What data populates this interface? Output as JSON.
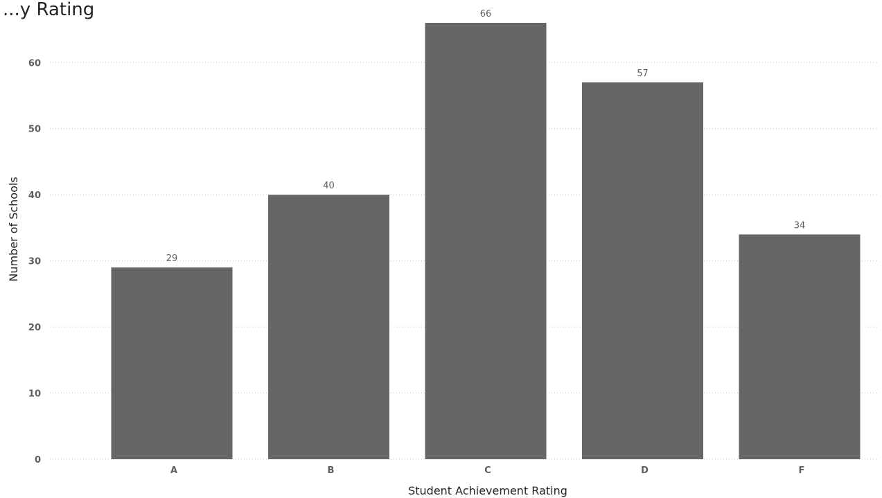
{
  "chart_data": {
    "type": "bar",
    "title": "...y Rating",
    "xlabel": "Student Achievement Rating",
    "ylabel": "Number of Schools",
    "categories": [
      "A",
      "B",
      "C",
      "D",
      "F"
    ],
    "values": [
      29,
      40,
      66,
      57,
      34
    ],
    "ylim": [
      0,
      66
    ],
    "yticks": [
      0,
      10,
      20,
      30,
      40,
      50,
      60
    ],
    "grid": true,
    "legend": "none",
    "bar_color": "#666666",
    "data_labels": true
  }
}
